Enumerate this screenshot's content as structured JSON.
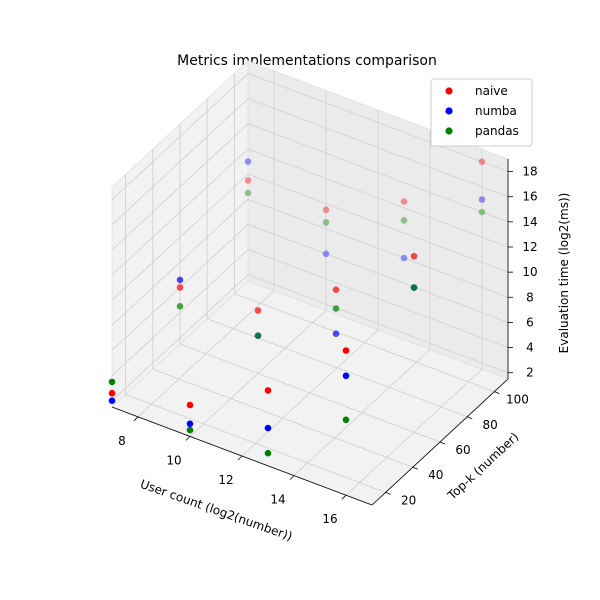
{
  "chart_data": {
    "type": "scatter",
    "title": "Metrics implementations comparison",
    "xlabel": "User count (log2(number))",
    "ylabel": "Top-k (number)",
    "zlabel": "Evaluation time (log2(ms))",
    "xlim": [
      7,
      17
    ],
    "ylim": [
      10,
      110
    ],
    "zlim": [
      1.5,
      19
    ],
    "xticks": [
      "8",
      "10",
      "12",
      "14",
      "16"
    ],
    "yticks": [
      "20",
      "40",
      "60",
      "80",
      "100"
    ],
    "zticks": [
      "2",
      "4",
      "6",
      "8",
      "10",
      "12",
      "14",
      "16",
      "18"
    ],
    "legend_position": "top-right",
    "grid": true,
    "series": [
      {
        "name": "naive",
        "color": "#ff0000",
        "points": [
          {
            "x": 7,
            "y": 10,
            "z": 2.6
          },
          {
            "x": 10,
            "y": 10,
            "z": 4.0
          },
          {
            "x": 13,
            "y": 10,
            "z": 7.5
          },
          {
            "x": 16,
            "y": 10,
            "z": 13.0
          },
          {
            "x": 7,
            "y": 60,
            "z": 6.0
          },
          {
            "x": 10,
            "y": 60,
            "z": 6.5
          },
          {
            "x": 13,
            "y": 60,
            "z": 10.5
          },
          {
            "x": 16,
            "y": 60,
            "z": 15.5
          },
          {
            "x": 7,
            "y": 110,
            "z": 9.5
          },
          {
            "x": 10,
            "y": 110,
            "z": 9.5
          },
          {
            "x": 13,
            "y": 110,
            "z": 12.5
          },
          {
            "x": 16,
            "y": 110,
            "z": 18.0
          }
        ]
      },
      {
        "name": "numba",
        "color": "#0000ff",
        "points": [
          {
            "x": 7,
            "y": 10,
            "z": 2.0
          },
          {
            "x": 10,
            "y": 10,
            "z": 2.5
          },
          {
            "x": 13,
            "y": 10,
            "z": 4.5
          },
          {
            "x": 16,
            "y": 10,
            "z": 11.0
          },
          {
            "x": 7,
            "y": 60,
            "z": 6.6
          },
          {
            "x": 10,
            "y": 60,
            "z": 4.5
          },
          {
            "x": 13,
            "y": 60,
            "z": 7.0
          },
          {
            "x": 16,
            "y": 60,
            "z": 13.0
          },
          {
            "x": 7,
            "y": 110,
            "z": 11.0
          },
          {
            "x": 10,
            "y": 110,
            "z": 6.0
          },
          {
            "x": 13,
            "y": 110,
            "z": 8.0
          },
          {
            "x": 16,
            "y": 110,
            "z": 15.0
          }
        ]
      },
      {
        "name": "pandas",
        "color": "#008000",
        "points": [
          {
            "x": 7,
            "y": 10,
            "z": 3.5
          },
          {
            "x": 10,
            "y": 10,
            "z": 2.0
          },
          {
            "x": 13,
            "y": 10,
            "z": 2.5
          },
          {
            "x": 16,
            "y": 10,
            "z": 7.5
          },
          {
            "x": 7,
            "y": 60,
            "z": 4.5
          },
          {
            "x": 10,
            "y": 60,
            "z": 4.5
          },
          {
            "x": 13,
            "y": 60,
            "z": 9.0
          },
          {
            "x": 16,
            "y": 60,
            "z": 13.0
          },
          {
            "x": 7,
            "y": 110,
            "z": 8.5
          },
          {
            "x": 10,
            "y": 110,
            "z": 8.5
          },
          {
            "x": 13,
            "y": 110,
            "z": 11.0
          },
          {
            "x": 16,
            "y": 110,
            "z": 14.0
          }
        ]
      }
    ]
  }
}
